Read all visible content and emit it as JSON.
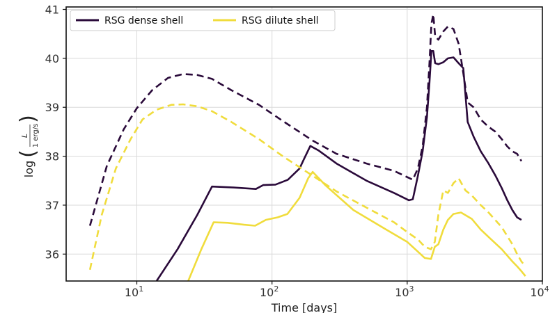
{
  "chart_data": {
    "type": "line",
    "title": "",
    "xlabel": "Time [days]",
    "ylabel_prefix": "log",
    "ylabel_numerator": "L",
    "ylabel_denominator": "1 erg/s",
    "xscale": "log",
    "xlim": [
      3,
      10000
    ],
    "ylim": [
      35.45,
      41.05
    ],
    "grid": true,
    "legend_position": "top-left",
    "x_ticks": [
      {
        "value": 10,
        "base": "10",
        "exp": "1"
      },
      {
        "value": 100,
        "base": "10",
        "exp": "2"
      },
      {
        "value": 1000,
        "base": "10",
        "exp": "3"
      },
      {
        "value": 10000,
        "base": "10",
        "exp": "4"
      }
    ],
    "y_ticks": [
      {
        "value": 36,
        "label": "36"
      },
      {
        "value": 37,
        "label": "37"
      },
      {
        "value": 38,
        "label": "38"
      },
      {
        "value": 39,
        "label": "39"
      },
      {
        "value": 40,
        "label": "40"
      },
      {
        "value": 41,
        "label": "41"
      }
    ],
    "series": [
      {
        "name": "RSG dense shell",
        "color": "#2a0a3a",
        "style": "solid",
        "in_legend": true,
        "x": [
          14,
          20,
          28,
          36,
          52,
          76,
          86,
          106,
          131,
          160,
          173,
          192,
          220,
          300,
          500,
          800,
          1030,
          1100,
          1200,
          1300,
          1400,
          1460,
          1510,
          1560,
          1610,
          1700,
          1850,
          2000,
          2200,
          2400,
          2600,
          2800,
          3100,
          3500,
          4000,
          4500,
          5000,
          5500,
          6000,
          6500,
          7000
        ],
        "y": [
          35.45,
          36.1,
          36.8,
          37.38,
          37.36,
          37.33,
          37.41,
          37.42,
          37.52,
          37.75,
          37.95,
          38.21,
          38.12,
          37.85,
          37.5,
          37.25,
          37.1,
          37.12,
          37.6,
          38.1,
          38.8,
          39.5,
          40.15,
          40.15,
          39.9,
          39.88,
          39.92,
          40.0,
          40.02,
          39.9,
          39.8,
          38.7,
          38.4,
          38.1,
          37.85,
          37.6,
          37.35,
          37.1,
          36.9,
          36.75,
          36.7
        ]
      },
      {
        "name": "RSG dense shell (dashed)",
        "color": "#2a0a3a",
        "style": "dashed",
        "in_legend": false,
        "x": [
          4.5,
          6,
          8,
          10,
          13,
          17,
          22,
          28,
          36,
          50,
          80,
          120,
          200,
          300,
          500,
          800,
          1100,
          1200,
          1300,
          1400,
          1460,
          1510,
          1560,
          1610,
          1700,
          1850,
          2000,
          2200,
          2400,
          2600,
          2800,
          3100,
          3500,
          4000,
          4500,
          5000,
          5500,
          6000,
          6500,
          7000
        ],
        "y": [
          36.58,
          37.8,
          38.55,
          38.98,
          39.35,
          39.6,
          39.68,
          39.66,
          39.58,
          39.35,
          39.05,
          38.72,
          38.32,
          38.05,
          37.85,
          37.7,
          37.52,
          37.75,
          38.2,
          39.0,
          39.9,
          40.7,
          40.9,
          40.45,
          40.38,
          40.55,
          40.65,
          40.6,
          40.3,
          39.7,
          39.1,
          39.0,
          38.75,
          38.6,
          38.5,
          38.35,
          38.2,
          38.1,
          38.05,
          37.9
        ]
      },
      {
        "name": "RSG dilute shell",
        "color": "#f0dc3c",
        "style": "solid",
        "in_legend": true,
        "x": [
          24,
          30,
          37,
          47,
          62,
          75,
          90,
          110,
          130,
          160,
          185,
          200,
          250,
          400,
          700,
          1000,
          1200,
          1350,
          1500,
          1600,
          1700,
          1850,
          2000,
          2200,
          2500,
          3000,
          3500,
          4000,
          5000,
          6000,
          6500,
          7000,
          7500
        ],
        "y": [
          35.45,
          36.1,
          36.65,
          36.64,
          36.6,
          36.58,
          36.7,
          36.75,
          36.82,
          37.15,
          37.55,
          37.68,
          37.4,
          36.9,
          36.5,
          36.25,
          36.05,
          35.92,
          35.9,
          36.15,
          36.2,
          36.5,
          36.7,
          36.82,
          36.85,
          36.72,
          36.5,
          36.35,
          36.1,
          35.85,
          35.75,
          35.65,
          35.55
        ]
      },
      {
        "name": "RSG dilute shell (dashed)",
        "color": "#f0dc3c",
        "style": "dashed",
        "in_legend": false,
        "x": [
          4.5,
          5.5,
          7,
          9,
          11,
          14,
          18,
          22,
          28,
          36,
          50,
          80,
          120,
          200,
          300,
          500,
          800,
          1000,
          1200,
          1350,
          1500,
          1600,
          1700,
          1850,
          2000,
          2200,
          2400,
          2700,
          3000,
          3500,
          4000,
          5000,
          6000,
          6500,
          7000,
          7500
        ],
        "y": [
          35.68,
          36.8,
          37.75,
          38.35,
          38.75,
          38.95,
          39.05,
          39.06,
          39.02,
          38.92,
          38.7,
          38.35,
          38.0,
          37.6,
          37.28,
          36.95,
          36.65,
          36.45,
          36.3,
          36.15,
          36.1,
          36.25,
          36.8,
          37.3,
          37.25,
          37.45,
          37.55,
          37.3,
          37.2,
          37.0,
          36.85,
          36.55,
          36.2,
          36.0,
          35.85,
          35.75
        ]
      }
    ]
  }
}
